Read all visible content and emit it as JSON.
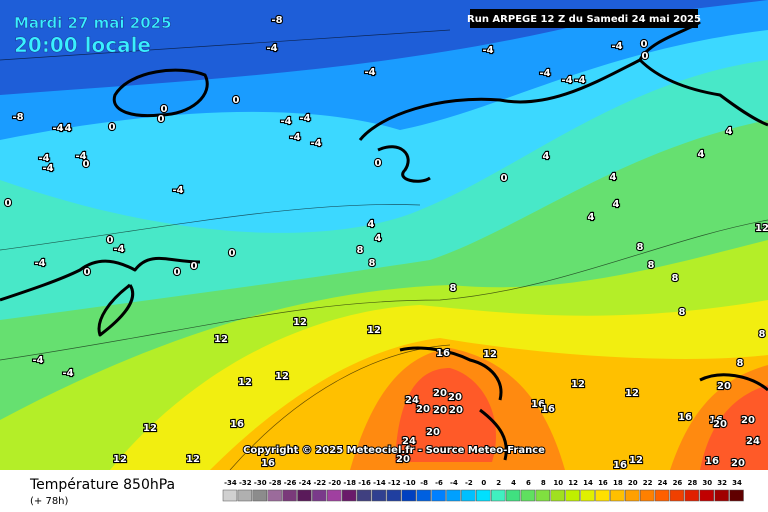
{
  "header": {
    "date": "Mardi 27 mai 2025",
    "time": "20:00 locale",
    "run": "Run ARPEGE 12 Z du Samedi 24 mai 2025"
  },
  "copyright": "Copyright © 2025 Meteociel.fr - Source Meteo-France",
  "footer": {
    "title": "Température 850hPa",
    "lead": "(+ 78h)"
  },
  "scale": {
    "values": [
      -34,
      -32,
      -30,
      -28,
      -26,
      -24,
      -22,
      -20,
      -18,
      -16,
      -14,
      -12,
      -10,
      -8,
      -6,
      -4,
      -2,
      0,
      2,
      4,
      6,
      8,
      10,
      12,
      14,
      16,
      18,
      20,
      22,
      24,
      26,
      28,
      30,
      32,
      34
    ],
    "colors": [
      "#d0d0d0",
      "#b0b0b0",
      "#8c8c8c",
      "#9b6b9b",
      "#7a3a7a",
      "#5a1a5a",
      "#7a3a8a",
      "#a040a0",
      "#6a1a6a",
      "#404080",
      "#304090",
      "#203fa0",
      "#0040c0",
      "#0060e0",
      "#0080ff",
      "#00a0ff",
      "#00c0ff",
      "#00e0ff",
      "#40f0c0",
      "#40e080",
      "#60e060",
      "#80e040",
      "#a0e020",
      "#c0f000",
      "#e0f000",
      "#ffe000",
      "#ffc000",
      "#ffa000",
      "#ff8000",
      "#ff6000",
      "#f04000",
      "#e02000",
      "#c00000",
      "#a00000",
      "#600000"
    ]
  },
  "contour_labels": [
    -8,
    -4,
    -4,
    -4,
    -4,
    -4,
    -4,
    -4,
    0,
    0,
    -8,
    -4,
    -4,
    -4,
    -4,
    -4,
    0,
    0,
    0,
    0,
    -4,
    -4,
    -4,
    -4,
    0,
    0,
    0,
    4,
    4,
    4,
    4,
    4,
    4,
    0,
    -4,
    0,
    -4,
    -4,
    0,
    0,
    0,
    0,
    4,
    4,
    8,
    8,
    8,
    8,
    8,
    8,
    8,
    12,
    12,
    12,
    12,
    16,
    12,
    12,
    12,
    12,
    12,
    12,
    16,
    16,
    12,
    -4,
    -4,
    20,
    20,
    24,
    20,
    20,
    20,
    16,
    16,
    20,
    24,
    20,
    20,
    16,
    20,
    20,
    24,
    16,
    16,
    20,
    16,
    12,
    8,
    8,
    12
  ]
}
